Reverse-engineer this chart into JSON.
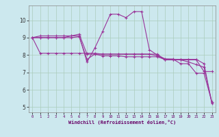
{
  "background_color": "#cce8ee",
  "plot_bg": "#cce8ee",
  "grid_color": "#aaccbb",
  "line_color": "#993399",
  "xlabel": "Windchill (Refroidissement éolien,°C)",
  "xlim": [
    -0.5,
    23.5
  ],
  "ylim": [
    4.7,
    10.85
  ],
  "xticks": [
    0,
    1,
    2,
    3,
    4,
    5,
    6,
    7,
    8,
    9,
    10,
    11,
    12,
    13,
    14,
    15,
    16,
    17,
    18,
    19,
    20,
    21,
    22,
    23
  ],
  "yticks": [
    5,
    6,
    7,
    8,
    9,
    10
  ],
  "series": [
    [
      9.0,
      9.1,
      9.1,
      9.1,
      9.1,
      9.1,
      9.1,
      7.6,
      8.4,
      9.35,
      10.35,
      10.35,
      10.15,
      10.5,
      10.5,
      8.3,
      8.0,
      7.78,
      7.77,
      7.5,
      7.5,
      6.95,
      6.95,
      5.3
    ],
    [
      9.0,
      9.0,
      9.0,
      9.0,
      9.0,
      9.0,
      9.05,
      7.75,
      8.05,
      7.95,
      7.95,
      7.95,
      7.9,
      7.9,
      7.9,
      7.9,
      7.9,
      7.75,
      7.75,
      7.75,
      7.75,
      7.75,
      7.5,
      5.2
    ],
    [
      9.0,
      8.1,
      8.1,
      8.1,
      8.1,
      8.1,
      8.1,
      8.1,
      8.1,
      8.05,
      8.05,
      8.05,
      8.05,
      8.05,
      8.05,
      8.05,
      8.05,
      7.72,
      7.72,
      7.72,
      7.72,
      7.72,
      7.05,
      7.05
    ],
    [
      9.0,
      9.0,
      9.0,
      9.0,
      9.0,
      9.1,
      9.2,
      8.05,
      8.05,
      8.05,
      8.05,
      8.05,
      8.05,
      8.05,
      8.05,
      8.05,
      7.95,
      7.72,
      7.72,
      7.72,
      7.6,
      7.45,
      7.3,
      5.3
    ]
  ]
}
